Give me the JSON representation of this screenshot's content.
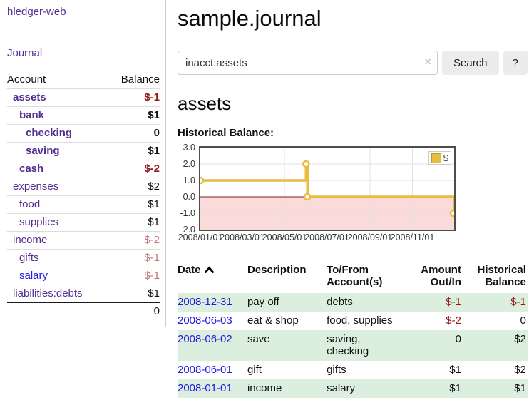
{
  "app": {
    "brand": "hledger-web",
    "nav_journal": "Journal"
  },
  "colors": {
    "accent_purple": "#552d90",
    "link_blue": "#1f1ae6",
    "negative_dark": "#911a1a",
    "negative_faint": "#c0737c",
    "row_green": "#dceede",
    "button_bg": "#ececec",
    "chart_line_gold": "#e8bc3d"
  },
  "sidebar": {
    "accounts_header": {
      "account": "Account",
      "balance": "Balance"
    },
    "accounts": [
      {
        "label": "assets",
        "depth": 1,
        "bold": true,
        "balance": "$-1"
      },
      {
        "label": "bank",
        "depth": 2,
        "bold": true,
        "balance": "$1"
      },
      {
        "label": "checking",
        "depth": 3,
        "bold": true,
        "balance": "0"
      },
      {
        "label": "saving",
        "depth": 3,
        "bold": true,
        "balance": "$1"
      },
      {
        "label": "cash",
        "depth": 2,
        "bold": true,
        "balance": "$-2"
      },
      {
        "label": "expenses",
        "depth": 1,
        "bold": false,
        "balance": "$2"
      },
      {
        "label": "food",
        "depth": 2,
        "bold": false,
        "balance": "$1"
      },
      {
        "label": "supplies",
        "depth": 2,
        "bold": false,
        "balance": "$1"
      },
      {
        "label": "income",
        "depth": 1,
        "bold": false,
        "balance": "$-2"
      },
      {
        "label": "gifts",
        "depth": 2,
        "bold": false,
        "balance": "$-1"
      },
      {
        "label": "salary",
        "depth": 2,
        "bold": false,
        "balance": "$-1",
        "variant": "blue"
      },
      {
        "label": "liabilities:debts",
        "depth": 1,
        "bold": false,
        "balance": "$1"
      }
    ],
    "total": "0"
  },
  "header": {
    "title": "sample.journal"
  },
  "search": {
    "value": "inacct:assets",
    "clear_icon": "×",
    "button": "Search",
    "help_button": "?"
  },
  "account_page": {
    "title": "assets",
    "chart_label": "Historical Balance:"
  },
  "chart_data": {
    "type": "line",
    "style": "step-after",
    "title": "Historical Balance",
    "legend": "$",
    "legend_position": "top-right",
    "x_range": [
      "2008-01-01",
      "2008-12-31"
    ],
    "ylim": [
      -2,
      3
    ],
    "grid": true,
    "series": [
      {
        "name": "$",
        "points": [
          [
            "2008-01-01",
            1
          ],
          [
            "2008-06-01",
            2
          ],
          [
            "2008-06-03",
            0
          ],
          [
            "2008-12-31",
            -1
          ]
        ]
      }
    ],
    "x_ticks": [
      "2008/01/01",
      "2008/03/01",
      "2008/05/01",
      "2008/07/01",
      "2008/09/01",
      "2008/11/01"
    ],
    "y_ticks": [
      "3.0",
      "2.0",
      "1.0",
      "0.0",
      "-1.0",
      "-2.0"
    ],
    "line_color": "#e8bc3d",
    "marker_fill": "#ffffff",
    "negative_region_fill": "#fbdada",
    "zero_line_color": "#8b1a1a",
    "grid_color": "#e2e2e2"
  },
  "register": {
    "sort_indicator": "ascending-chevron",
    "headers": {
      "date": "Date",
      "description": "Description",
      "to_from": "To/From Account(s)",
      "amount": "Amount Out/In",
      "balance": "Historical Balance"
    },
    "rows": [
      {
        "date": "2008-12-31",
        "description": "pay off",
        "to_from": "debts",
        "amount": "$-1",
        "balance": "$-1",
        "shaded": true
      },
      {
        "date": "2008-06-03",
        "description": "eat & shop",
        "to_from": "food, supplies",
        "amount": "$-2",
        "balance": "0",
        "shaded": false
      },
      {
        "date": "2008-06-02",
        "description": "save",
        "to_from": "saving, checking",
        "amount": "0",
        "balance": "$2",
        "shaded": true
      },
      {
        "date": "2008-06-01",
        "description": "gift",
        "to_from": "gifts",
        "amount": "$1",
        "balance": "$2",
        "shaded": false
      },
      {
        "date": "2008-01-01",
        "description": "income",
        "to_from": "salary",
        "amount": "$1",
        "balance": "$1",
        "shaded": true
      }
    ]
  }
}
